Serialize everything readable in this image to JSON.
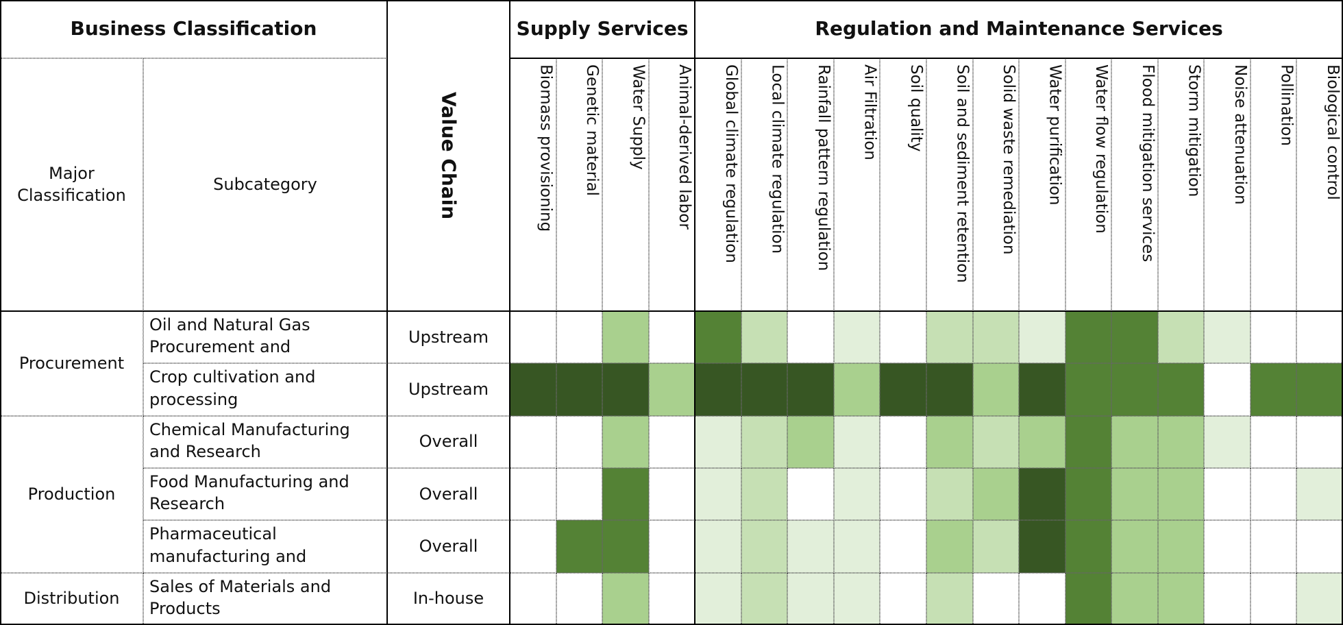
{
  "header": {
    "business_classification": "Business Classification",
    "value_chain": "Value Chain",
    "major_classification": "Major Classification",
    "subcategory": "Subcategory"
  },
  "service_groups": [
    {
      "label": "Supply Services",
      "services": [
        "Biomass provisioning",
        "Genetic material",
        "Water Supply",
        "Animal-derived labor"
      ]
    },
    {
      "label": "Regulation and Maintenance Services",
      "services": [
        "Global climate regulation",
        "Local climate regulation",
        "Rainfall pattern regulation",
        "Air Filtration",
        "Soil quality",
        "Soil and sediment retention",
        "Solid waste remediation",
        "Water purification",
        "Water flow regulation",
        "Flood mitigation services",
        "Storm mitigation",
        "Noise attenuation",
        "Pollination",
        "Biological control"
      ]
    }
  ],
  "level_colors": [
    "#ffffff",
    "#e2efda",
    "#c6e0b4",
    "#a9d08e",
    "#548235",
    "#375623"
  ],
  "groups": [
    {
      "major": "Procurement",
      "rows": [
        {
          "subcategory": "Oil and Natural Gas Procurement and",
          "value_chain": "Upstream",
          "levels": [
            0,
            0,
            3,
            0,
            4,
            2,
            0,
            1,
            0,
            2,
            2,
            1,
            4,
            4,
            2,
            1,
            0,
            0
          ]
        },
        {
          "subcategory": "Crop cultivation and processing",
          "value_chain": "Upstream",
          "levels": [
            5,
            5,
            5,
            3,
            5,
            5,
            5,
            3,
            5,
            5,
            3,
            5,
            4,
            4,
            4,
            0,
            4,
            4
          ]
        }
      ]
    },
    {
      "major": "Production",
      "rows": [
        {
          "subcategory": "Chemical Manufacturing and Research",
          "value_chain": "Overall",
          "levels": [
            0,
            0,
            3,
            0,
            1,
            2,
            3,
            1,
            0,
            3,
            2,
            3,
            4,
            3,
            3,
            1,
            0,
            0
          ]
        },
        {
          "subcategory": "Food Manufacturing and Research",
          "value_chain": "Overall",
          "levels": [
            0,
            0,
            4,
            0,
            1,
            2,
            0,
            1,
            0,
            2,
            3,
            5,
            4,
            3,
            3,
            0,
            0,
            1
          ]
        },
        {
          "subcategory": "Pharmaceutical manufacturing and",
          "value_chain": "Overall",
          "levels": [
            0,
            4,
            4,
            0,
            1,
            2,
            1,
            1,
            0,
            3,
            2,
            5,
            4,
            3,
            3,
            0,
            0,
            0
          ]
        }
      ]
    },
    {
      "major": "Distribution",
      "rows": [
        {
          "subcategory": "Sales of Materials and Products",
          "value_chain": "In-house",
          "levels": [
            0,
            0,
            3,
            0,
            1,
            2,
            1,
            1,
            0,
            2,
            0,
            0,
            4,
            3,
            3,
            0,
            0,
            1
          ]
        }
      ]
    }
  ]
}
